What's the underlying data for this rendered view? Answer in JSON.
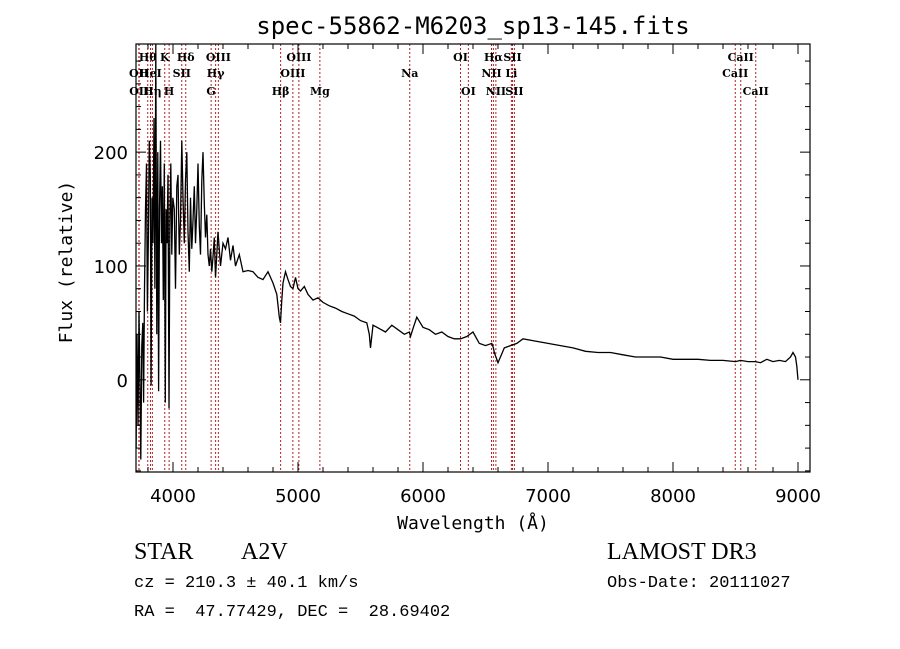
{
  "chart_data": {
    "type": "line",
    "title": "spec-55862-M6203_sp13-145.fits",
    "xlabel": "Wavelength (Å)",
    "ylabel": "Flux (relative)",
    "xlim": [
      3704,
      9096
    ],
    "ylim": [
      -81,
      295
    ],
    "xticks": [
      4000,
      5000,
      6000,
      7000,
      8000,
      9000
    ],
    "xtick_labels": [
      "4000",
      "5000",
      "6000",
      "7000",
      "8000",
      "9000"
    ],
    "yticks": [
      0,
      100,
      200
    ],
    "ytick_labels": [
      "0",
      "100",
      "200"
    ],
    "grid": false,
    "line_color": "#000000",
    "marker_line_color": "#b22222",
    "series": [
      {
        "name": "spectrum",
        "x": [
          3705,
          3712,
          3720,
          3728,
          3735,
          3742,
          3750,
          3758,
          3765,
          3772,
          3780,
          3788,
          3795,
          3802,
          3810,
          3818,
          3825,
          3832,
          3840,
          3848,
          3855,
          3862,
          3870,
          3878,
          3885,
          3892,
          3900,
          3908,
          3915,
          3922,
          3930,
          3938,
          3945,
          3952,
          3960,
          3968,
          3975,
          3982,
          3990,
          3998,
          4010,
          4020,
          4030,
          4040,
          4050,
          4060,
          4070,
          4080,
          4090,
          4100,
          4110,
          4120,
          4130,
          4140,
          4150,
          4160,
          4170,
          4180,
          4190,
          4200,
          4210,
          4220,
          4230,
          4240,
          4250,
          4260,
          4270,
          4280,
          4290,
          4300,
          4310,
          4320,
          4330,
          4340,
          4350,
          4360,
          4380,
          4400,
          4420,
          4440,
          4460,
          4480,
          4500,
          4530,
          4560,
          4600,
          4640,
          4680,
          4720,
          4760,
          4800,
          4830,
          4850,
          4860,
          4870,
          4880,
          4900,
          4920,
          4940,
          4960,
          4980,
          5000,
          5020,
          5050,
          5080,
          5120,
          5160,
          5200,
          5250,
          5300,
          5350,
          5400,
          5450,
          5500,
          5550,
          5570,
          5580,
          5600,
          5650,
          5700,
          5750,
          5800,
          5850,
          5890,
          5900,
          5920,
          5950,
          6000,
          6050,
          6100,
          6150,
          6200,
          6250,
          6300,
          6350,
          6400,
          6450,
          6500,
          6550,
          6563,
          6570,
          6600,
          6650,
          6700,
          6750,
          6800,
          6900,
          7000,
          7100,
          7200,
          7300,
          7400,
          7500,
          7600,
          7700,
          7800,
          7900,
          8000,
          8100,
          8200,
          8300,
          8400,
          8500,
          8540,
          8600,
          8660,
          8700,
          8750,
          8800,
          8850,
          8900,
          8940,
          8960,
          8980,
          8990,
          9000
        ],
        "y": [
          -60,
          40,
          -40,
          60,
          0,
          -70,
          30,
          50,
          -20,
          80,
          150,
          190,
          60,
          120,
          210,
          180,
          -5,
          160,
          120,
          230,
          80,
          300,
          40,
          200,
          -10,
          150,
          210,
          120,
          170,
          70,
          190,
          -20,
          150,
          120,
          180,
          -25,
          140,
          190,
          110,
          160,
          150,
          80,
          170,
          180,
          110,
          140,
          210,
          160,
          120,
          175,
          200,
          130,
          95,
          160,
          115,
          140,
          170,
          120,
          150,
          190,
          135,
          110,
          175,
          200,
          155,
          125,
          145,
          110,
          100,
          115,
          95,
          108,
          125,
          90,
          110,
          130,
          100,
          120,
          115,
          125,
          105,
          118,
          100,
          110,
          95,
          96,
          95,
          90,
          88,
          95,
          85,
          75,
          55,
          50,
          70,
          85,
          95,
          88,
          82,
          80,
          90,
          80,
          78,
          82,
          75,
          70,
          72,
          68,
          65,
          63,
          60,
          58,
          56,
          52,
          50,
          40,
          28,
          48,
          45,
          42,
          48,
          44,
          40,
          42,
          38,
          45,
          55,
          46,
          44,
          40,
          42,
          38,
          36,
          36,
          38,
          42,
          32,
          30,
          32,
          28,
          24,
          15,
          28,
          30,
          32,
          36,
          34,
          32,
          30,
          28,
          25,
          24,
          24,
          22,
          20,
          20,
          20,
          18,
          18,
          18,
          17,
          17,
          16,
          17,
          16,
          16,
          15,
          18,
          16,
          17,
          16,
          20,
          24,
          20,
          12,
          0
        ]
      }
    ],
    "markers": [
      {
        "label": "Hθ",
        "wavelength": 3798,
        "row": 1
      },
      {
        "label": "OII",
        "wavelength": 3727,
        "row": 2
      },
      {
        "label": "OII",
        "wavelength": 3729,
        "row": 3
      },
      {
        "label": "HeI",
        "wavelength": 3820,
        "row": 2
      },
      {
        "label": "Hη",
        "wavelength": 3835,
        "row": 3
      },
      {
        "label": "K",
        "wavelength": 3934,
        "row": 1
      },
      {
        "label": "H",
        "wavelength": 3969,
        "row": 3
      },
      {
        "label": "SII",
        "wavelength": 4070,
        "row": 2
      },
      {
        "label": "Hδ",
        "wavelength": 4102,
        "row": 1
      },
      {
        "label": "G",
        "wavelength": 4305,
        "row": 3
      },
      {
        "label": "Hγ",
        "wavelength": 4341,
        "row": 2
      },
      {
        "label": "OIII",
        "wavelength": 4363,
        "row": 1
      },
      {
        "label": "Hβ",
        "wavelength": 4861,
        "row": 3
      },
      {
        "label": "OIII",
        "wavelength": 4959,
        "row": 2
      },
      {
        "label": "OIII",
        "wavelength": 5007,
        "row": 1
      },
      {
        "label": "Mg",
        "wavelength": 5175,
        "row": 3
      },
      {
        "label": "Na",
        "wavelength": 5894,
        "row": 2
      },
      {
        "label": "OI",
        "wavelength": 6300,
        "row": 1
      },
      {
        "label": "OI",
        "wavelength": 6363,
        "row": 3
      },
      {
        "label": "NII",
        "wavelength": 6548,
        "row": 2
      },
      {
        "label": "Hα",
        "wavelength": 6563,
        "row": 1
      },
      {
        "label": "NII",
        "wavelength": 6583,
        "row": 3
      },
      {
        "label": "Li",
        "wavelength": 6707,
        "row": 2
      },
      {
        "label": "SII",
        "wavelength": 6716,
        "row": 1
      },
      {
        "label": "SII",
        "wavelength": 6731,
        "row": 3
      },
      {
        "label": "CaII",
        "wavelength": 8498,
        "row": 2
      },
      {
        "label": "CaII",
        "wavelength": 8542,
        "row": 1
      },
      {
        "label": "CaII",
        "wavelength": 8662,
        "row": 3
      }
    ]
  },
  "info": {
    "object_class": "STAR",
    "subclass": "A2V",
    "redshift": "cz = 210.3 ± 40.1 km/s",
    "coords": "RA =  47.77429, DEC =  28.69402",
    "survey": "LAMOST DR3",
    "obs_date": "Obs-Date: 20111027"
  }
}
